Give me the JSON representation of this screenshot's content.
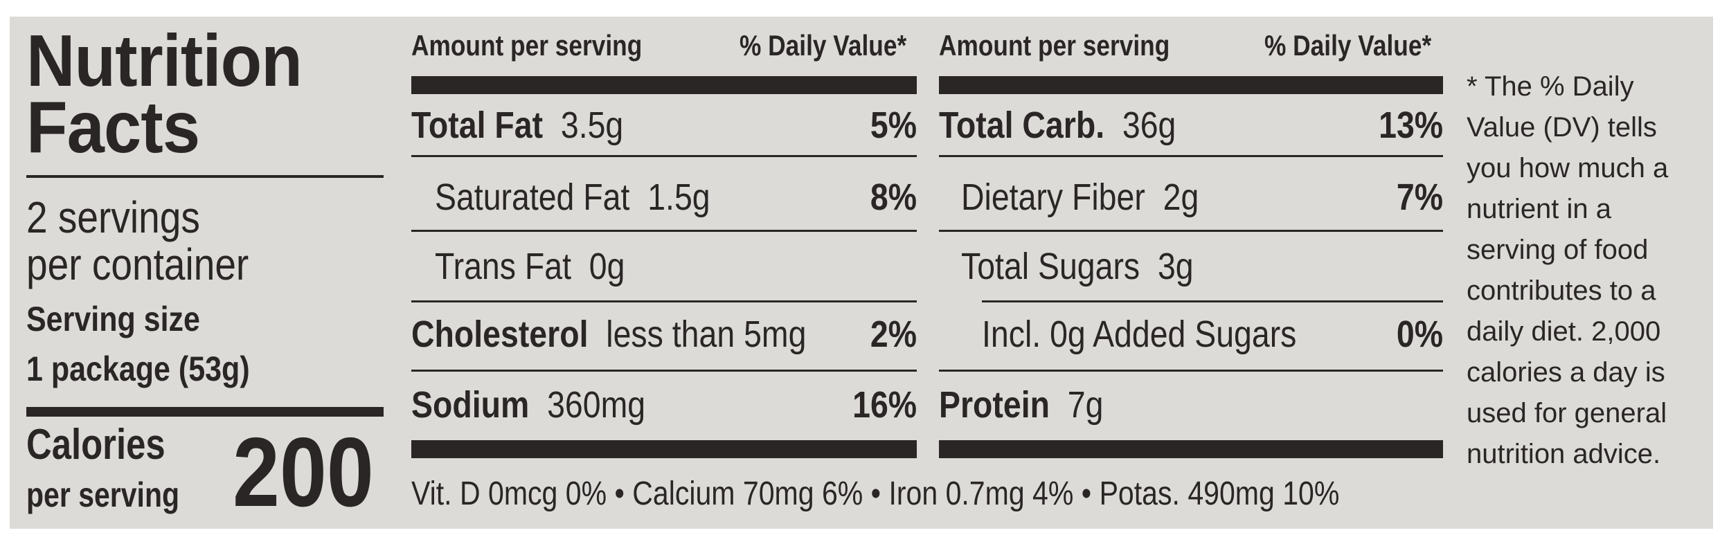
{
  "label": {
    "title_line1": "Nutrition",
    "title_line2": "Facts",
    "servings_line1": "2 servings",
    "servings_line2": "per container",
    "serving_size_label": "Serving size",
    "serving_size_value": "1 package (53g)",
    "calories_label": "Calories",
    "calories_sub": "per serving",
    "calories_value": "200"
  },
  "left_col": {
    "header_amount": "Amount per serving",
    "header_dv": "% Daily Value*",
    "rows": [
      {
        "name": "Total Fat",
        "amount": "3.5g",
        "dv": "5%"
      },
      {
        "name": "Saturated Fat",
        "amount": "1.5g",
        "dv": "8%"
      },
      {
        "name": "Trans Fat",
        "amount": "0g",
        "dv": ""
      },
      {
        "name": "Cholesterol",
        "amount": "less than 5mg",
        "dv": "2%"
      },
      {
        "name": "Sodium",
        "amount": "360mg",
        "dv": "16%"
      }
    ]
  },
  "right_col": {
    "header_amount": "Amount per serving",
    "header_dv": "% Daily Value*",
    "rows": [
      {
        "name": "Total Carb.",
        "amount": "36g",
        "dv": "13%"
      },
      {
        "name": "Dietary Fiber",
        "amount": "2g",
        "dv": "7%"
      },
      {
        "name": "Total Sugars",
        "amount": "3g",
        "dv": ""
      },
      {
        "name": "Incl. 0g Added Sugars",
        "amount": "",
        "dv": "0%"
      },
      {
        "name": "Protein",
        "amount": "7g",
        "dv": ""
      }
    ]
  },
  "footer": {
    "vitd": "Vit. D  0mcg  0%",
    "calcium": "Calcium  70mg  6%",
    "iron": "Iron  0.7mg  4%",
    "potas": "Potas.  490mg  10%",
    "bullet": "•"
  },
  "footnote": "* The % Daily Value (DV) tells you how much a nutrient in a serving of food contributes to a daily diet. 2,000 calories a day is used for general nutrition advice."
}
